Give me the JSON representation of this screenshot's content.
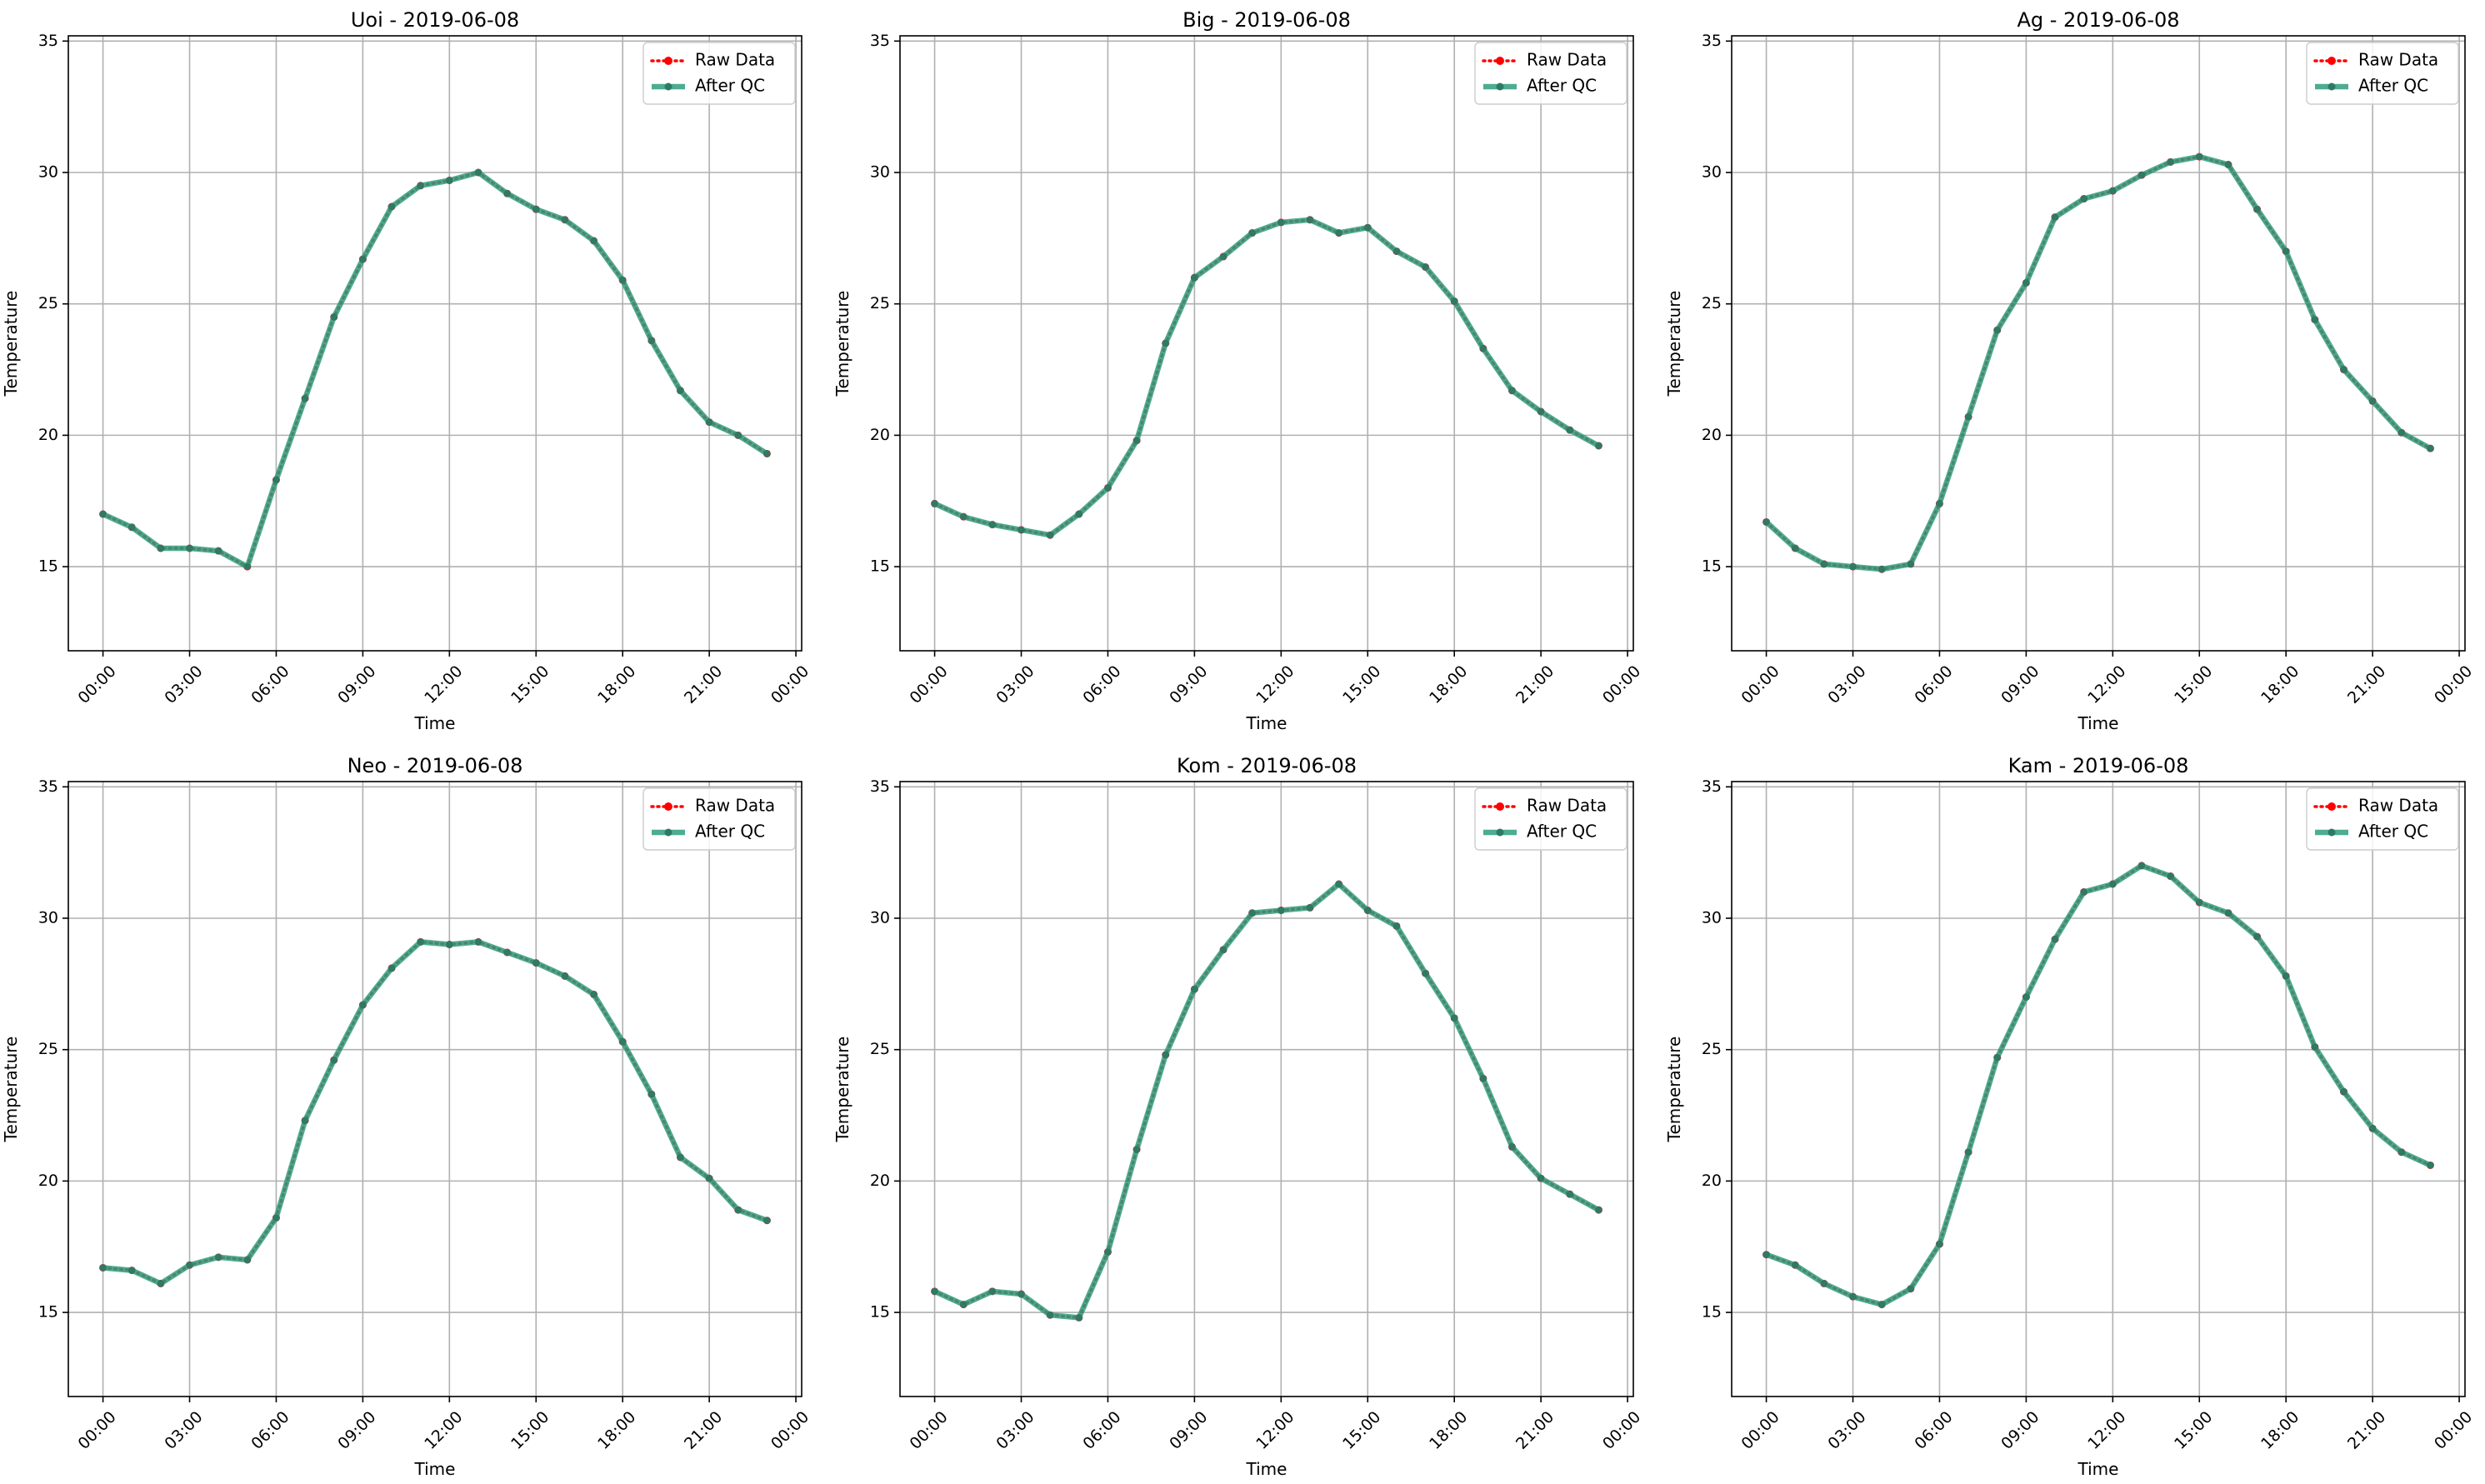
{
  "chart_data": [
    {
      "type": "line",
      "title": "Uoi - 2019-06-08",
      "xlabel": "Time",
      "ylabel": "Temperature",
      "ylim": [
        11.8,
        35.2
      ],
      "yticks": [
        15,
        20,
        25,
        30,
        35
      ],
      "xlim": [
        "2019-06-07 22:48",
        "2019-06-09 00:12"
      ],
      "xtick_labels": [
        "00:00",
        "03:00",
        "06:00",
        "09:00",
        "12:00",
        "15:00",
        "18:00",
        "21:00",
        "00:00"
      ],
      "grid": true,
      "legend": "upper right",
      "x": [
        "00:00",
        "01:00",
        "02:00",
        "03:00",
        "04:00",
        "05:00",
        "06:00",
        "07:00",
        "08:00",
        "09:00",
        "10:00",
        "11:00",
        "12:00",
        "13:00",
        "14:00",
        "15:00",
        "16:00",
        "17:00",
        "18:00",
        "19:00",
        "20:00",
        "21:00",
        "22:00",
        "23:00"
      ],
      "series": [
        {
          "name": "Raw Data",
          "color": "#ff0000",
          "values": [
            17.0,
            16.5,
            15.7,
            15.7,
            15.6,
            15.0,
            18.3,
            21.4,
            24.5,
            26.7,
            28.7,
            29.5,
            29.7,
            30.0,
            29.2,
            28.6,
            28.2,
            27.4,
            25.9,
            23.6,
            21.7,
            20.5,
            20.0,
            19.3
          ]
        },
        {
          "name": "After QC",
          "color": "#2e9e7e",
          "values": [
            17.0,
            16.5,
            15.7,
            15.7,
            15.6,
            15.0,
            18.3,
            21.4,
            24.5,
            26.7,
            28.7,
            29.5,
            29.7,
            30.0,
            29.2,
            28.6,
            28.2,
            27.4,
            25.9,
            23.6,
            21.7,
            20.5,
            20.0,
            19.3
          ]
        }
      ]
    },
    {
      "type": "line",
      "title": "Big - 2019-06-08",
      "xlabel": "Time",
      "ylabel": "Temperature",
      "ylim": [
        11.8,
        35.2
      ],
      "yticks": [
        15,
        20,
        25,
        30,
        35
      ],
      "xlim": [
        "2019-06-07 22:48",
        "2019-06-09 00:12"
      ],
      "xtick_labels": [
        "00:00",
        "03:00",
        "06:00",
        "09:00",
        "12:00",
        "15:00",
        "18:00",
        "21:00",
        "00:00"
      ],
      "grid": true,
      "legend": "upper right",
      "x": [
        "00:00",
        "01:00",
        "02:00",
        "03:00",
        "04:00",
        "05:00",
        "06:00",
        "07:00",
        "08:00",
        "09:00",
        "10:00",
        "11:00",
        "12:00",
        "13:00",
        "14:00",
        "15:00",
        "16:00",
        "17:00",
        "18:00",
        "19:00",
        "20:00",
        "21:00",
        "22:00",
        "23:00"
      ],
      "series": [
        {
          "name": "Raw Data",
          "color": "#ff0000",
          "values": [
            17.4,
            16.9,
            16.6,
            16.4,
            16.2,
            17.0,
            18.0,
            19.8,
            23.5,
            26.0,
            26.8,
            27.7,
            28.1,
            28.2,
            27.7,
            27.9,
            27.0,
            26.4,
            25.1,
            23.3,
            21.7,
            20.9,
            20.2,
            19.6
          ]
        },
        {
          "name": "After QC",
          "color": "#2e9e7e",
          "values": [
            17.4,
            16.9,
            16.6,
            16.4,
            16.2,
            17.0,
            18.0,
            19.8,
            23.5,
            26.0,
            26.8,
            27.7,
            28.1,
            28.2,
            27.7,
            27.9,
            27.0,
            26.4,
            25.1,
            23.3,
            21.7,
            20.9,
            20.2,
            19.6
          ]
        }
      ]
    },
    {
      "type": "line",
      "title": "Ag - 2019-06-08",
      "xlabel": "Time",
      "ylabel": "Temperature",
      "ylim": [
        11.8,
        35.2
      ],
      "yticks": [
        15,
        20,
        25,
        30,
        35
      ],
      "xlim": [
        "2019-06-07 22:48",
        "2019-06-09 00:12"
      ],
      "xtick_labels": [
        "00:00",
        "03:00",
        "06:00",
        "09:00",
        "12:00",
        "15:00",
        "18:00",
        "21:00",
        "00:00"
      ],
      "grid": true,
      "legend": "upper right",
      "x": [
        "00:00",
        "01:00",
        "02:00",
        "03:00",
        "04:00",
        "05:00",
        "06:00",
        "07:00",
        "08:00",
        "09:00",
        "10:00",
        "11:00",
        "12:00",
        "13:00",
        "14:00",
        "15:00",
        "16:00",
        "17:00",
        "18:00",
        "19:00",
        "20:00",
        "21:00",
        "22:00",
        "23:00"
      ],
      "series": [
        {
          "name": "Raw Data",
          "color": "#ff0000",
          "values": [
            16.7,
            15.7,
            15.1,
            15.0,
            14.9,
            15.1,
            17.4,
            20.7,
            24.0,
            25.8,
            28.3,
            29.0,
            29.3,
            29.9,
            30.4,
            30.6,
            30.3,
            28.6,
            27.0,
            24.4,
            22.5,
            21.3,
            20.1,
            19.5
          ]
        },
        {
          "name": "After QC",
          "color": "#2e9e7e",
          "values": [
            16.7,
            15.7,
            15.1,
            15.0,
            14.9,
            15.1,
            17.4,
            20.7,
            24.0,
            25.8,
            28.3,
            29.0,
            29.3,
            29.9,
            30.4,
            30.6,
            30.3,
            28.6,
            27.0,
            24.4,
            22.5,
            21.3,
            20.1,
            19.5
          ]
        }
      ]
    },
    {
      "type": "line",
      "title": "Neo - 2019-06-08",
      "xlabel": "Time",
      "ylabel": "Temperature",
      "ylim": [
        11.8,
        35.2
      ],
      "yticks": [
        15,
        20,
        25,
        30,
        35
      ],
      "xlim": [
        "2019-06-07 22:48",
        "2019-06-09 00:12"
      ],
      "xtick_labels": [
        "00:00",
        "03:00",
        "06:00",
        "09:00",
        "12:00",
        "15:00",
        "18:00",
        "21:00",
        "00:00"
      ],
      "grid": true,
      "legend": "upper right",
      "x": [
        "00:00",
        "01:00",
        "02:00",
        "03:00",
        "04:00",
        "05:00",
        "06:00",
        "07:00",
        "08:00",
        "09:00",
        "10:00",
        "11:00",
        "12:00",
        "13:00",
        "14:00",
        "15:00",
        "16:00",
        "17:00",
        "18:00",
        "19:00",
        "20:00",
        "21:00",
        "22:00",
        "23:00"
      ],
      "series": [
        {
          "name": "Raw Data",
          "color": "#ff0000",
          "values": [
            16.7,
            16.6,
            16.1,
            16.8,
            17.1,
            17.0,
            18.6,
            22.3,
            24.6,
            26.7,
            28.1,
            29.1,
            29.0,
            29.1,
            28.7,
            28.3,
            27.8,
            27.1,
            25.3,
            23.3,
            20.9,
            20.1,
            18.9,
            18.5
          ]
        },
        {
          "name": "After QC",
          "color": "#2e9e7e",
          "values": [
            16.7,
            16.6,
            16.1,
            16.8,
            17.1,
            17.0,
            18.6,
            22.3,
            24.6,
            26.7,
            28.1,
            29.1,
            29.0,
            29.1,
            28.7,
            28.3,
            27.8,
            27.1,
            25.3,
            23.3,
            20.9,
            20.1,
            18.9,
            18.5
          ]
        }
      ]
    },
    {
      "type": "line",
      "title": "Kom - 2019-06-08",
      "xlabel": "Time",
      "ylabel": "Temperature",
      "ylim": [
        11.8,
        35.2
      ],
      "yticks": [
        15,
        20,
        25,
        30,
        35
      ],
      "xlim": [
        "2019-06-07 22:48",
        "2019-06-09 00:12"
      ],
      "xtick_labels": [
        "00:00",
        "03:00",
        "06:00",
        "09:00",
        "12:00",
        "15:00",
        "18:00",
        "21:00",
        "00:00"
      ],
      "grid": true,
      "legend": "upper right",
      "x": [
        "00:00",
        "01:00",
        "02:00",
        "03:00",
        "04:00",
        "05:00",
        "06:00",
        "07:00",
        "08:00",
        "09:00",
        "10:00",
        "11:00",
        "12:00",
        "13:00",
        "14:00",
        "15:00",
        "16:00",
        "17:00",
        "18:00",
        "19:00",
        "20:00",
        "21:00",
        "22:00",
        "23:00"
      ],
      "series": [
        {
          "name": "Raw Data",
          "color": "#ff0000",
          "values": [
            15.8,
            15.3,
            15.8,
            15.7,
            14.9,
            14.8,
            17.3,
            21.2,
            24.8,
            27.3,
            28.8,
            30.2,
            30.3,
            30.4,
            31.3,
            30.3,
            29.7,
            27.9,
            26.2,
            23.9,
            21.3,
            20.1,
            19.5,
            18.9
          ]
        },
        {
          "name": "After QC",
          "color": "#2e9e7e",
          "values": [
            15.8,
            15.3,
            15.8,
            15.7,
            14.9,
            14.8,
            17.3,
            21.2,
            24.8,
            27.3,
            28.8,
            30.2,
            30.3,
            30.4,
            31.3,
            30.3,
            29.7,
            27.9,
            26.2,
            23.9,
            21.3,
            20.1,
            19.5,
            18.9
          ]
        }
      ]
    },
    {
      "type": "line",
      "title": "Kam - 2019-06-08",
      "xlabel": "Time",
      "ylabel": "Temperature",
      "ylim": [
        11.8,
        35.2
      ],
      "yticks": [
        15,
        20,
        25,
        30,
        35
      ],
      "xlim": [
        "2019-06-07 22:48",
        "2019-06-09 00:12"
      ],
      "xtick_labels": [
        "00:00",
        "03:00",
        "06:00",
        "09:00",
        "12:00",
        "15:00",
        "18:00",
        "21:00",
        "00:00"
      ],
      "grid": true,
      "legend": "upper right",
      "x": [
        "00:00",
        "01:00",
        "02:00",
        "03:00",
        "04:00",
        "05:00",
        "06:00",
        "07:00",
        "08:00",
        "09:00",
        "10:00",
        "11:00",
        "12:00",
        "13:00",
        "14:00",
        "15:00",
        "16:00",
        "17:00",
        "18:00",
        "19:00",
        "20:00",
        "21:00",
        "22:00",
        "23:00"
      ],
      "series": [
        {
          "name": "Raw Data",
          "color": "#ff0000",
          "values": [
            17.2,
            16.8,
            16.1,
            15.6,
            15.3,
            15.9,
            17.6,
            21.1,
            24.7,
            27.0,
            29.2,
            31.0,
            31.3,
            32.0,
            31.6,
            30.6,
            30.2,
            29.3,
            27.8,
            25.1,
            23.4,
            22.0,
            21.1,
            20.6
          ]
        },
        {
          "name": "After QC",
          "color": "#2e9e7e",
          "values": [
            17.2,
            16.8,
            16.1,
            15.6,
            15.3,
            15.9,
            17.6,
            21.1,
            24.7,
            27.0,
            29.2,
            31.0,
            31.3,
            32.0,
            31.6,
            30.6,
            30.2,
            29.3,
            27.8,
            25.1,
            23.4,
            22.0,
            21.1,
            20.6
          ]
        }
      ]
    }
  ]
}
